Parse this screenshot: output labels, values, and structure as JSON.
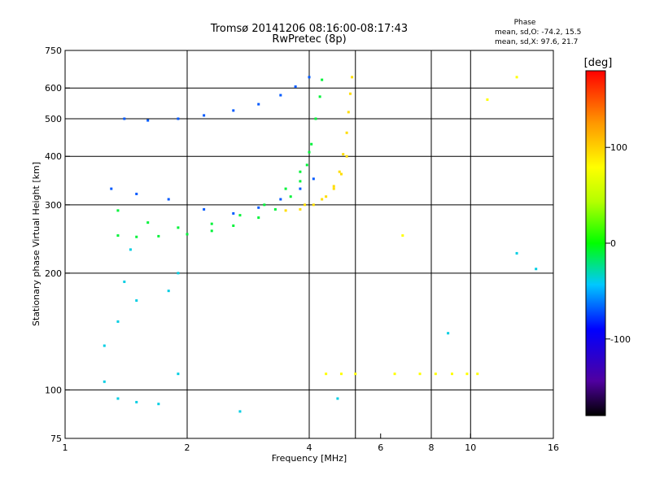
{
  "chart_data": {
    "type": "scatter",
    "title": "Tromsø 20141206 08:16:00-08:17:43",
    "subtitle": "RwPretec (8p)",
    "xlabel": "Frequency [MHz]",
    "ylabel": "Stationary phase Virtual Height [km]",
    "x_scale": "log",
    "y_scale": "log",
    "xlim": [
      1,
      16
    ],
    "ylim": [
      75,
      750
    ],
    "x_ticks": [
      1,
      2,
      4,
      6,
      8,
      10,
      16
    ],
    "x_tick_labels": [
      "1",
      "2",
      "4",
      "6",
      "8",
      "10",
      "16"
    ],
    "y_ticks": [
      75,
      100,
      200,
      300,
      400,
      500,
      600,
      750
    ],
    "y_tick_labels": [
      "75",
      "100",
      "200",
      "300",
      "400",
      "500",
      "600",
      "750"
    ],
    "x_gridlines": [
      2,
      4,
      5.2,
      8,
      10
    ],
    "y_gridlines": [
      100,
      200,
      300,
      400,
      500,
      600
    ],
    "grid": true,
    "stats": {
      "heading": "Phase",
      "o_line": "mean, sd,O: -74.2, 15.5",
      "x_line": "mean, sd,X:  97.6, 21.7"
    },
    "colorbar": {
      "label": "[deg]",
      "range": [
        -180,
        180
      ],
      "ticks": [
        100,
        0,
        -100
      ],
      "tick_labels": [
        "100",
        "0",
        "-100"
      ]
    },
    "series": [
      {
        "points": [
          [
            1.35,
            250
          ],
          [
            1.5,
            248
          ],
          [
            1.7,
            249
          ],
          [
            2.0,
            252
          ],
          [
            2.3,
            257
          ],
          [
            2.6,
            265
          ],
          [
            3.0,
            278
          ],
          [
            3.3,
            292
          ],
          [
            3.6,
            315
          ],
          [
            3.8,
            345
          ],
          [
            3.95,
            380
          ],
          [
            4.05,
            430
          ],
          [
            4.15,
            500
          ],
          [
            4.25,
            570
          ],
          [
            4.3,
            630
          ],
          [
            1.35,
            290
          ],
          [
            1.6,
            270
          ],
          [
            1.9,
            262
          ],
          [
            2.3,
            268
          ],
          [
            2.7,
            282
          ],
          [
            3.1,
            300
          ],
          [
            3.5,
            330
          ],
          [
            3.8,
            365
          ],
          [
            4.0,
            410
          ]
        ],
        "phase": -10
      },
      {
        "points": [
          [
            1.4,
            500
          ],
          [
            1.6,
            495
          ],
          [
            1.9,
            500
          ],
          [
            2.2,
            510
          ],
          [
            2.6,
            525
          ],
          [
            3.0,
            545
          ],
          [
            3.4,
            575
          ],
          [
            3.7,
            605
          ],
          [
            4.0,
            640
          ],
          [
            1.3,
            330
          ],
          [
            1.5,
            320
          ],
          [
            1.8,
            310
          ],
          [
            2.2,
            292
          ],
          [
            2.6,
            285
          ],
          [
            3.0,
            295
          ],
          [
            3.4,
            310
          ],
          [
            3.8,
            330
          ],
          [
            4.1,
            350
          ]
        ],
        "phase": -70
      },
      {
        "points": [
          [
            3.5,
            290
          ],
          [
            3.8,
            292
          ],
          [
            4.1,
            300
          ],
          [
            4.4,
            315
          ],
          [
            4.6,
            335
          ],
          [
            4.75,
            365
          ],
          [
            4.85,
            405
          ],
          [
            4.95,
            460
          ],
          [
            5.0,
            520
          ],
          [
            5.05,
            580
          ],
          [
            5.1,
            640
          ],
          [
            3.9,
            300
          ],
          [
            4.3,
            310
          ],
          [
            4.6,
            330
          ],
          [
            4.8,
            360
          ],
          [
            4.95,
            400
          ]
        ],
        "phase": 95
      },
      {
        "points": [
          [
            4.4,
            110
          ],
          [
            4.8,
            110
          ],
          [
            5.2,
            110
          ],
          [
            6.5,
            110
          ],
          [
            7.5,
            110
          ],
          [
            8.2,
            110
          ],
          [
            9.0,
            110
          ],
          [
            9.8,
            110
          ],
          [
            10.4,
            110
          ],
          [
            6.8,
            250
          ],
          [
            13.0,
            640
          ],
          [
            11.0,
            560
          ]
        ],
        "phase": 80
      },
      {
        "points": [
          [
            1.25,
            105
          ],
          [
            1.35,
            95
          ],
          [
            1.5,
            93
          ],
          [
            1.7,
            92
          ],
          [
            1.9,
            110
          ],
          [
            1.25,
            130
          ],
          [
            1.35,
            150
          ],
          [
            1.4,
            190
          ],
          [
            1.5,
            170
          ],
          [
            1.8,
            180
          ],
          [
            1.9,
            200
          ],
          [
            1.45,
            230
          ],
          [
            2.7,
            88
          ],
          [
            4.7,
            95
          ],
          [
            8.8,
            140
          ],
          [
            13.0,
            225
          ],
          [
            14.5,
            205
          ]
        ],
        "phase": -40
      }
    ]
  }
}
